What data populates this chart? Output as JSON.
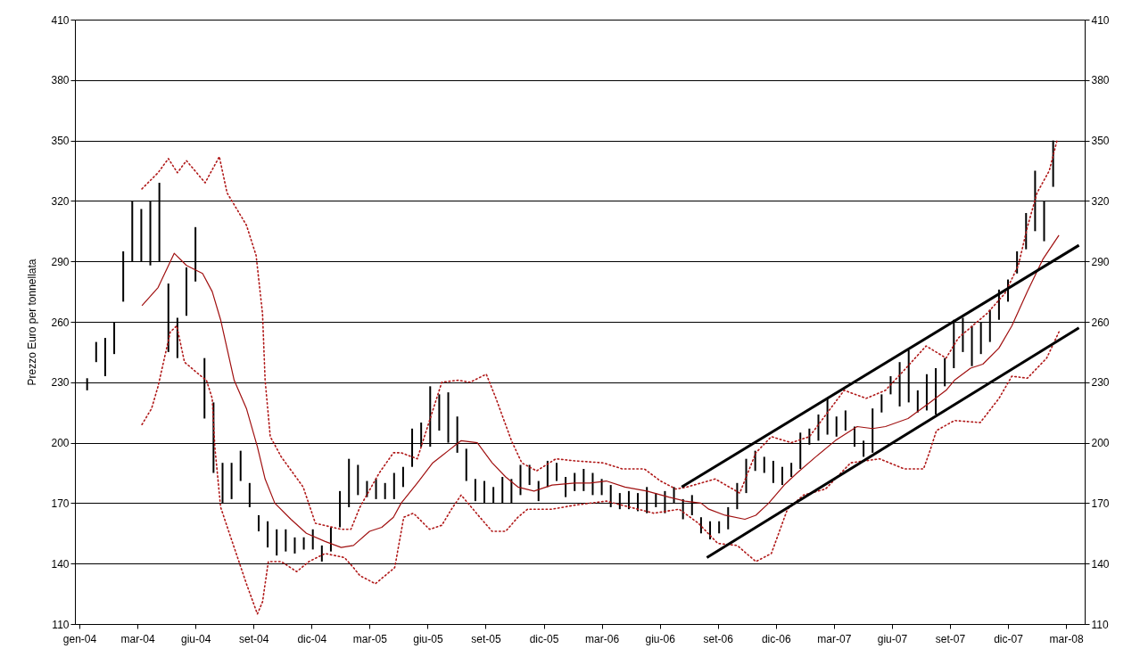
{
  "chart_data": {
    "type": "bar",
    "ylabel": "Prezzo Euro per tonnellata",
    "xlim": [
      "2004-01-01",
      "2008-04-01"
    ],
    "xticks": [
      {
        "value": "2004-01-01",
        "label": "gen-04"
      },
      {
        "value": "2004-03-31",
        "label": "mar-04"
      },
      {
        "value": "2004-06-29",
        "label": "giu-04"
      },
      {
        "value": "2004-09-27",
        "label": "set-04"
      },
      {
        "value": "2004-12-26",
        "label": "dic-04"
      },
      {
        "value": "2005-03-26",
        "label": "mar-05"
      },
      {
        "value": "2005-06-24",
        "label": "giu-05"
      },
      {
        "value": "2005-09-22",
        "label": "set-05"
      },
      {
        "value": "2005-12-21",
        "label": "dic-05"
      },
      {
        "value": "2006-03-21",
        "label": "mar-06"
      },
      {
        "value": "2006-06-19",
        "label": "giu-06"
      },
      {
        "value": "2006-09-17",
        "label": "set-06"
      },
      {
        "value": "2006-12-16",
        "label": "dic-06"
      },
      {
        "value": "2007-03-16",
        "label": "mar-07"
      },
      {
        "value": "2007-06-14",
        "label": "giu-07"
      },
      {
        "value": "2007-09-12",
        "label": "set-07"
      },
      {
        "value": "2007-12-11",
        "label": "dic-07"
      },
      {
        "value": "2008-03-10",
        "label": "mar-08"
      }
    ],
    "ylim": [
      110,
      410
    ],
    "yticks": [
      110,
      140,
      170,
      200,
      230,
      260,
      290,
      320,
      350,
      380,
      410
    ],
    "y2lim": [
      110,
      410
    ],
    "y2ticks": [
      110,
      140,
      170,
      200,
      230,
      260,
      290,
      320,
      350,
      380,
      410
    ],
    "grid": "y",
    "series": [
      {
        "color": "#000000",
        "x": [
          "2004-01-13",
          "2004-01-27",
          "2004-02-10",
          "2004-02-24",
          "2004-03-09",
          "2004-03-23",
          "2004-04-06",
          "2004-04-20",
          "2004-05-04",
          "2004-05-18",
          "2004-06-01",
          "2004-06-15",
          "2004-06-29",
          "2004-07-13",
          "2004-07-27",
          "2004-08-10",
          "2004-08-24",
          "2004-09-07",
          "2004-09-21",
          "2004-10-05",
          "2004-10-19",
          "2004-11-02",
          "2004-11-16",
          "2004-11-30",
          "2004-12-14",
          "2004-12-28",
          "2005-01-11",
          "2005-01-25",
          "2005-02-08",
          "2005-02-22",
          "2005-03-08",
          "2005-03-22",
          "2005-04-05",
          "2005-04-19",
          "2005-05-03",
          "2005-05-17",
          "2005-05-31",
          "2005-06-14",
          "2005-06-28",
          "2005-07-12",
          "2005-07-26",
          "2005-08-09",
          "2005-08-23",
          "2005-09-06",
          "2005-09-20",
          "2005-10-04",
          "2005-10-18",
          "2005-11-01",
          "2005-11-15",
          "2005-11-29",
          "2005-12-13",
          "2005-12-27",
          "2006-01-10",
          "2006-01-24",
          "2006-02-07",
          "2006-02-21",
          "2006-03-07",
          "2006-03-21",
          "2006-04-04",
          "2006-04-18",
          "2006-05-02",
          "2006-05-16",
          "2006-05-30",
          "2006-06-13",
          "2006-06-27",
          "2006-07-11",
          "2006-07-25",
          "2006-08-08",
          "2006-08-22",
          "2006-09-05",
          "2006-09-19",
          "2006-10-03",
          "2006-10-17",
          "2006-10-31",
          "2006-11-14",
          "2006-11-28",
          "2006-12-12",
          "2006-12-26",
          "2007-01-09",
          "2007-01-23",
          "2007-02-06",
          "2007-02-20",
          "2007-03-06",
          "2007-03-20",
          "2007-04-03",
          "2007-04-17",
          "2007-05-01",
          "2007-05-15",
          "2007-05-29",
          "2007-06-12",
          "2007-06-26",
          "2007-07-10",
          "2007-07-24",
          "2007-08-07",
          "2007-08-21",
          "2007-09-04",
          "2007-09-18",
          "2007-10-02",
          "2007-10-16",
          "2007-10-30",
          "2007-11-13",
          "2007-11-27",
          "2007-12-11",
          "2007-12-25",
          "2008-01-08",
          "2008-01-22",
          "2008-02-05",
          "2008-02-19"
        ],
        "base": [
          226,
          240,
          233,
          244,
          270,
          290,
          290,
          288,
          290,
          245,
          242,
          263,
          280,
          212,
          185,
          170,
          172,
          181,
          168,
          156,
          148,
          144,
          146,
          145,
          147,
          147,
          141,
          146,
          158,
          168,
          174,
          173,
          172,
          172,
          172,
          178,
          188,
          198,
          198,
          206,
          200,
          195,
          181,
          171,
          170,
          170,
          170,
          170,
          174,
          179,
          171,
          178,
          181,
          173,
          176,
          176,
          174,
          174,
          168,
          167,
          167,
          166,
          165,
          168,
          165,
          170,
          162,
          164,
          155,
          152,
          155,
          157,
          167,
          175,
          186,
          185,
          180,
          179,
          183,
          187,
          199,
          201,
          204,
          203,
          206,
          198,
          193,
          195,
          215,
          224,
          218,
          220,
          215,
          216,
          214,
          228,
          237,
          245,
          238,
          244,
          250,
          261,
          270,
          284,
          296,
          305,
          300,
          327
        ],
        "values": [
          6,
          10,
          19,
          16,
          25,
          30,
          26,
          32,
          39,
          34,
          20,
          24,
          27,
          30,
          35,
          20,
          18,
          15,
          12,
          8,
          13,
          13,
          11,
          8,
          6,
          10,
          8,
          12,
          18,
          24,
          15,
          8,
          10,
          8,
          13,
          10,
          19,
          12,
          30,
          18,
          25,
          18,
          16,
          11,
          11,
          8,
          13,
          12,
          15,
          10,
          10,
          13,
          9,
          10,
          9,
          11,
          11,
          8,
          11,
          8,
          9,
          9,
          13,
          7,
          11,
          8,
          10,
          10,
          8,
          9,
          6,
          11,
          13,
          17,
          10,
          8,
          11,
          9,
          7,
          18,
          8,
          13,
          18,
          10,
          10,
          10,
          8,
          22,
          9,
          9,
          22,
          26,
          11,
          18,
          23,
          14,
          24,
          17,
          20,
          16,
          16,
          15,
          11,
          11,
          18,
          30,
          20,
          23
        ]
      },
      {
        "type": "line",
        "color": "#a01010",
        "line_style": "solid",
        "x": [
          "2004-04-07",
          "2004-05-02",
          "2004-05-27",
          "2004-06-15",
          "2004-07-10",
          "2004-07-25",
          "2004-08-07",
          "2004-08-28",
          "2004-09-16",
          "2004-10-03",
          "2004-10-15",
          "2004-10-30",
          "2004-11-24",
          "2004-12-18",
          "2005-01-16",
          "2005-02-10",
          "2005-03-01",
          "2005-03-26",
          "2005-04-14",
          "2005-05-02",
          "2005-05-14",
          "2005-06-08",
          "2005-07-02",
          "2005-07-26",
          "2005-08-15",
          "2005-09-09",
          "2005-10-02",
          "2005-10-23",
          "2005-11-11",
          "2005-12-06",
          "2006-01-03",
          "2006-02-07",
          "2006-03-03",
          "2006-03-28",
          "2006-04-26",
          "2006-05-30",
          "2006-07-03",
          "2006-07-28",
          "2006-08-22",
          "2006-09-03",
          "2006-09-28",
          "2006-10-29",
          "2006-11-15",
          "2006-12-05",
          "2006-12-29",
          "2007-01-18",
          "2007-02-16",
          "2007-03-18",
          "2007-04-21",
          "2007-05-15",
          "2007-06-04",
          "2007-07-09",
          "2007-08-12",
          "2007-09-06",
          "2007-09-19",
          "2007-10-14",
          "2007-11-02",
          "2007-11-27",
          "2007-12-17",
          "2008-01-10",
          "2008-02-03",
          "2008-02-28"
        ],
        "values": [
          268,
          277,
          294,
          288,
          284,
          275,
          261,
          231,
          217,
          198,
          182,
          170,
          162,
          155,
          151,
          148,
          149,
          156,
          158,
          163,
          170,
          180,
          190,
          196,
          201,
          200,
          190,
          183,
          178,
          176,
          179,
          180,
          180,
          181,
          178,
          176,
          173,
          171,
          170,
          167,
          164,
          162,
          164,
          170,
          179,
          185,
          193,
          201,
          208,
          207,
          208,
          212,
          220,
          226,
          231,
          237,
          239,
          247,
          258,
          275,
          291,
          303
        ]
      },
      {
        "type": "line",
        "color": "#b01818",
        "line_style": "dotted",
        "x": [
          "2004-04-07",
          "2004-05-02",
          "2004-05-18",
          "2004-06-01",
          "2004-06-15",
          "2004-07-14",
          "2004-08-05",
          "2004-08-17",
          "2004-09-16",
          "2004-10-01",
          "2004-10-11",
          "2004-10-15",
          "2004-10-23",
          "2004-11-09",
          "2004-12-13",
          "2005-01-01",
          "2005-02-10",
          "2005-02-25",
          "2005-03-11",
          "2005-04-10",
          "2005-05-02",
          "2005-05-14",
          "2005-06-08",
          "2005-07-16",
          "2005-08-10",
          "2005-08-29",
          "2005-09-23",
          "2005-10-08",
          "2005-11-01",
          "2005-11-17",
          "2005-12-10",
          "2006-01-09",
          "2006-02-07",
          "2006-03-23",
          "2006-04-22",
          "2006-05-26",
          "2006-06-20",
          "2006-07-14",
          "2006-07-31",
          "2006-09-13",
          "2006-10-21",
          "2006-11-15",
          "2006-12-09",
          "2007-01-09",
          "2007-02-06",
          "2007-04-01",
          "2007-05-05",
          "2007-06-04",
          "2007-07-03",
          "2007-08-06",
          "2007-09-06",
          "2007-09-25",
          "2007-11-08",
          "2007-12-06",
          "2007-12-27",
          "2008-01-10",
          "2008-01-25",
          "2008-02-13",
          "2008-02-25"
        ],
        "values": [
          326,
          334,
          341,
          334,
          340,
          329,
          342,
          324,
          308,
          293,
          264,
          231,
          203,
          193,
          178,
          160,
          157,
          157,
          168,
          185,
          195,
          195,
          192,
          230,
          231,
          230,
          234,
          222,
          201,
          190,
          186,
          192,
          191,
          190,
          187,
          187,
          181,
          177,
          178,
          182,
          175,
          195,
          203,
          200,
          203,
          226,
          222,
          226,
          236,
          248,
          242,
          252,
          264,
          274,
          288,
          307,
          324,
          335,
          350
        ]
      },
      {
        "type": "line",
        "color": "#b01818",
        "line_style": "dotted",
        "x": [
          "2004-04-07",
          "2004-04-22",
          "2004-05-02",
          "2004-05-21",
          "2004-05-31",
          "2004-06-12",
          "2004-07-04",
          "2004-07-16",
          "2004-07-25",
          "2004-07-29",
          "2004-08-07",
          "2004-08-28",
          "2004-09-16",
          "2004-10-03",
          "2004-10-11",
          "2004-10-20",
          "2004-11-09",
          "2004-12-03",
          "2004-12-22",
          "2005-01-16",
          "2005-02-15",
          "2005-03-01",
          "2005-03-11",
          "2005-04-04",
          "2005-05-04",
          "2005-05-18",
          "2005-06-02",
          "2005-06-27",
          "2005-07-16",
          "2005-07-31",
          "2005-08-15",
          "2005-09-13",
          "2005-10-02",
          "2005-10-23",
          "2005-11-11",
          "2005-11-26",
          "2006-01-03",
          "2006-02-07",
          "2006-03-28",
          "2006-05-16",
          "2006-06-10",
          "2006-07-19",
          "2006-08-18",
          "2006-09-17",
          "2006-10-17",
          "2006-11-15",
          "2006-12-09",
          "2007-01-03",
          "2007-01-28",
          "2007-03-03",
          "2007-04-11",
          "2007-05-26",
          "2007-07-03",
          "2007-08-02",
          "2007-08-12",
          "2007-08-22",
          "2007-09-19",
          "2007-10-29",
          "2007-11-27",
          "2007-12-17",
          "2008-01-10",
          "2008-02-09",
          "2008-02-28"
        ],
        "values": [
          209,
          217,
          228,
          255,
          258,
          240,
          234,
          231,
          222,
          198,
          168,
          148,
          130,
          115,
          121,
          141,
          141,
          136,
          141,
          145,
          143,
          138,
          134,
          130,
          138,
          163,
          165,
          157,
          159,
          167,
          174,
          163,
          156,
          156,
          163,
          167,
          167,
          169,
          171,
          167,
          165,
          167,
          160,
          150,
          149,
          141,
          145,
          167,
          174,
          177,
          190,
          192,
          187,
          187,
          196,
          206,
          211,
          210,
          222,
          233,
          232,
          242,
          255
        ]
      },
      {
        "type": "line",
        "color": "#000000",
        "line_style": "solid",
        "x": [
          "2006-07-23",
          "2008-03-30"
        ],
        "values": [
          178,
          298
        ]
      },
      {
        "type": "line",
        "color": "#000000",
        "line_style": "solid",
        "x": [
          "2006-08-31",
          "2008-03-30"
        ],
        "values": [
          143,
          257
        ]
      }
    ]
  }
}
